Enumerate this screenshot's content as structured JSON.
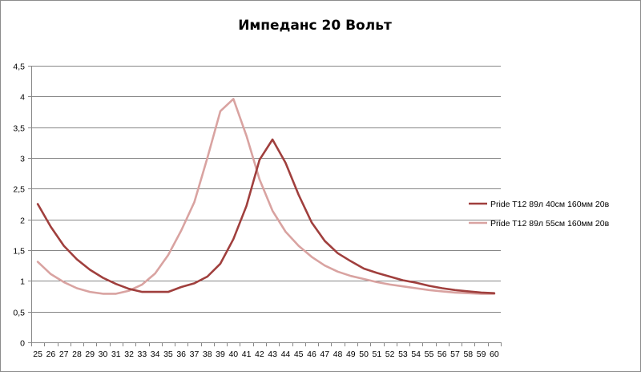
{
  "chart_data": {
    "type": "line",
    "title": "Импеданс 20 Вольт",
    "xlabel": "",
    "ylabel": "",
    "x": [
      25,
      26,
      27,
      28,
      29,
      30,
      31,
      32,
      33,
      34,
      35,
      36,
      37,
      38,
      39,
      40,
      41,
      42,
      43,
      44,
      45,
      46,
      47,
      48,
      49,
      50,
      51,
      52,
      53,
      54,
      55,
      56,
      57,
      58,
      59,
      60
    ],
    "ylim": [
      0,
      4.5
    ],
    "y_ticks": [
      "0",
      "0,5",
      "1",
      "1,5",
      "2",
      "2,5",
      "3",
      "3,5",
      "4",
      "4,5"
    ],
    "grid": "horizontal",
    "legend_position": "right",
    "series": [
      {
        "name": "Pride T12  89л 40см  160мм  20в",
        "color": "#a03f3d",
        "values": [
          2.25,
          1.88,
          1.57,
          1.35,
          1.18,
          1.05,
          0.95,
          0.87,
          0.82,
          0.82,
          0.82,
          0.9,
          0.96,
          1.07,
          1.28,
          1.68,
          2.22,
          2.97,
          3.3,
          2.92,
          2.4,
          1.95,
          1.65,
          1.45,
          1.32,
          1.2,
          1.13,
          1.07,
          1.01,
          0.97,
          0.92,
          0.88,
          0.85,
          0.83,
          0.81,
          0.8
        ]
      },
      {
        "name": "Pride T12  89л  55см  160мм  20в",
        "color": "#d9a3a1",
        "values": [
          1.31,
          1.11,
          0.98,
          0.88,
          0.82,
          0.79,
          0.79,
          0.84,
          0.94,
          1.12,
          1.42,
          1.82,
          2.28,
          3.0,
          3.76,
          3.96,
          3.36,
          2.65,
          2.14,
          1.8,
          1.57,
          1.39,
          1.25,
          1.15,
          1.08,
          1.03,
          0.98,
          0.94,
          0.91,
          0.88,
          0.85,
          0.83,
          0.81,
          0.8,
          0.79,
          0.79
        ]
      }
    ]
  }
}
